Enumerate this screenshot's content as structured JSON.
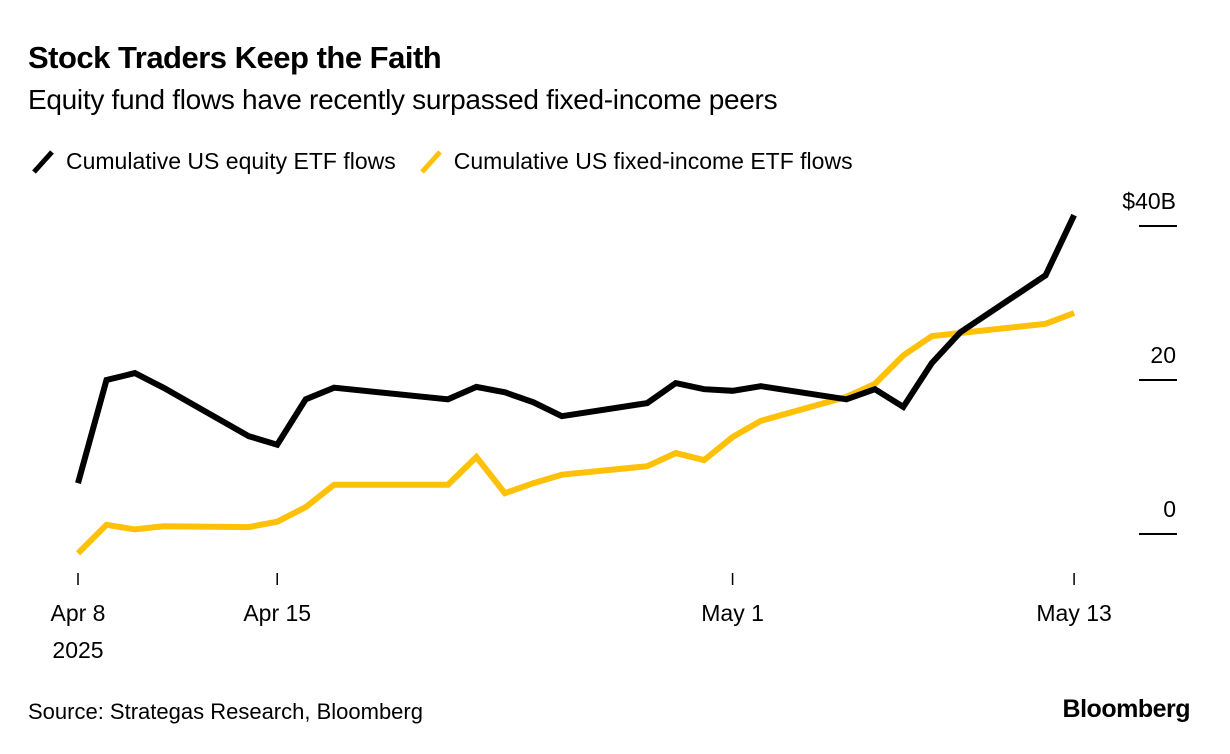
{
  "header": {
    "title": "Stock Traders Keep the Faith",
    "subtitle": "Equity fund flows have recently surpassed fixed-income peers"
  },
  "footer": {
    "source": "Source: Strategas Research, Bloomberg",
    "brand": "Bloomberg"
  },
  "chart_data": {
    "type": "line",
    "title": "Stock Traders Keep the Faith",
    "subtitle": "Equity fund flows have recently surpassed fixed-income peers",
    "xlabel": "",
    "ylabel": "",
    "y_unit_label": "$40B",
    "ylim": [
      -5,
      42
    ],
    "yticks": [
      0,
      20,
      40
    ],
    "ytick_labels": [
      "0",
      "20",
      "$40B"
    ],
    "y_axis_side": "right",
    "grid": false,
    "legend_position": "top-left",
    "xticks": [
      {
        "date": "2025-04-08",
        "label": "Apr 8",
        "sublabel": "2025"
      },
      {
        "date": "2025-04-15",
        "label": "Apr 15",
        "sublabel": ""
      },
      {
        "date": "2025-05-01",
        "label": "May 1",
        "sublabel": ""
      },
      {
        "date": "2025-05-13",
        "label": "May 13",
        "sublabel": ""
      }
    ],
    "x_start": "2025-04-08",
    "x_end": "2025-05-13",
    "x": [
      "2025-04-08",
      "2025-04-09",
      "2025-04-10",
      "2025-04-11",
      "2025-04-14",
      "2025-04-15",
      "2025-04-16",
      "2025-04-17",
      "2025-04-21",
      "2025-04-22",
      "2025-04-23",
      "2025-04-24",
      "2025-04-25",
      "2025-04-28",
      "2025-04-29",
      "2025-04-30",
      "2025-05-01",
      "2025-05-02",
      "2025-05-05",
      "2025-05-06",
      "2025-05-07",
      "2025-05-08",
      "2025-05-09",
      "2025-05-12",
      "2025-05-13"
    ],
    "series": [
      {
        "name": "Cumulative US equity ETF flows",
        "color": "#000000",
        "values": [
          6.6,
          20.0,
          20.9,
          19.0,
          12.7,
          11.6,
          17.5,
          19.0,
          17.5,
          19.1,
          18.4,
          17.1,
          15.3,
          17.0,
          19.6,
          18.8,
          18.6,
          19.2,
          17.5,
          18.8,
          16.5,
          22.2,
          26.2,
          33.6,
          41.4
        ]
      },
      {
        "name": "Cumulative US fixed-income ETF flows",
        "color": "#FFC107",
        "values": [
          -2.5,
          1.2,
          0.6,
          1.0,
          0.9,
          1.6,
          3.5,
          6.4,
          6.4,
          10.0,
          5.3,
          6.6,
          7.7,
          8.8,
          10.5,
          9.6,
          12.6,
          14.7,
          17.8,
          19.5,
          23.2,
          25.7,
          26.1,
          27.3,
          28.7
        ]
      }
    ]
  }
}
